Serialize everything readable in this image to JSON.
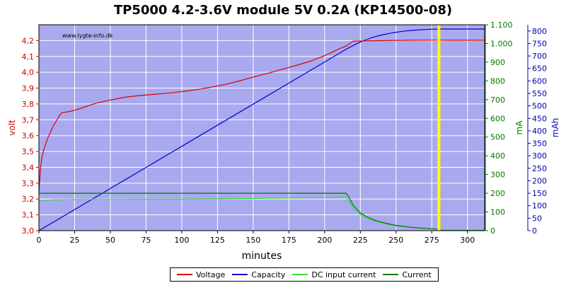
{
  "title": "TP5000 4.2-3.6V module 5V 0.2A (KP14500-08)",
  "watermark": "www.lygte-info.dk",
  "colors": {
    "plot_bg": "#a9a9ef",
    "grid": "#ffffff",
    "voltage": "#dd0000",
    "capacity": "#0000cc",
    "dc_input": "#33dd33",
    "current": "#007700",
    "marker": "#ffff00",
    "y1_axis": "#cc0000",
    "y2_axis": "#007700",
    "y3_axis": "#0000aa"
  },
  "chart_data": {
    "type": "line",
    "title": "TP5000 4.2-3.6V module 5V 0.2A (KP14500-08)",
    "xlabel": "minutes",
    "xlim": [
      0,
      312
    ],
    "xticks": [
      0,
      25,
      50,
      75,
      100,
      125,
      150,
      175,
      200,
      225,
      250,
      275,
      300
    ],
    "y_axes": [
      {
        "id": "y1",
        "label": "volt",
        "lim": [
          3.0,
          4.3
        ],
        "ticks": [
          "3,0",
          "3,1",
          "3,2",
          "3,3",
          "3,4",
          "3,5",
          "3,6",
          "3,7",
          "3,8",
          "3,9",
          "4,0",
          "4,1",
          "4,2"
        ],
        "tick_values": [
          3.0,
          3.1,
          3.2,
          3.3,
          3.4,
          3.5,
          3.6,
          3.7,
          3.8,
          3.9,
          4.0,
          4.1,
          4.2
        ]
      },
      {
        "id": "y2",
        "label": "mA",
        "lim": [
          0,
          1.1
        ],
        "ticks": [
          "0",
          "100",
          "200",
          "300",
          "400",
          "500",
          "600",
          "700",
          "800",
          "900",
          "1.000",
          "1.100"
        ],
        "tick_values": [
          0,
          0.1,
          0.2,
          0.3,
          0.4,
          0.5,
          0.6,
          0.7,
          0.8,
          0.9,
          1.0,
          1.1
        ]
      },
      {
        "id": "y3",
        "label": "mAh",
        "lim": [
          0,
          825
        ],
        "ticks": [
          "0",
          "50",
          "100",
          "150",
          "200",
          "250",
          "300",
          "350",
          "400",
          "450",
          "500",
          "550",
          "600",
          "650",
          "700",
          "750",
          "800"
        ],
        "tick_values": [
          0,
          50,
          100,
          150,
          200,
          250,
          300,
          350,
          400,
          450,
          500,
          550,
          600,
          650,
          700,
          750,
          800
        ]
      }
    ],
    "grid": true,
    "legend_position": "bottom-center",
    "marker_x": 280,
    "series": [
      {
        "name": "Voltage",
        "axis": "y1",
        "color": "#dd0000",
        "x": [
          0,
          1,
          2,
          4,
          6,
          8,
          10,
          12,
          14,
          16,
          20,
          25,
          30,
          40,
          50,
          60,
          70,
          80,
          90,
          100,
          110,
          120,
          130,
          140,
          150,
          160,
          170,
          180,
          190,
          200,
          205,
          210,
          215,
          220,
          240,
          260,
          278,
          280,
          290,
          300,
          312
        ],
        "y": [
          3.24,
          3.38,
          3.46,
          3.53,
          3.58,
          3.62,
          3.66,
          3.69,
          3.72,
          3.745,
          3.75,
          3.76,
          3.775,
          3.805,
          3.825,
          3.842,
          3.853,
          3.86,
          3.868,
          3.878,
          3.89,
          3.905,
          3.922,
          3.945,
          3.97,
          3.993,
          4.018,
          4.043,
          4.07,
          4.105,
          4.125,
          4.148,
          4.165,
          4.197,
          4.2,
          4.202,
          4.203,
          4.203,
          4.202,
          4.202,
          4.202
        ]
      },
      {
        "name": "Capacity",
        "axis": "y3",
        "color": "#0000cc",
        "x": [
          0,
          50,
          100,
          150,
          200,
          215,
          220,
          225,
          230,
          235,
          240,
          245,
          250,
          255,
          260,
          265,
          270,
          275,
          280,
          290,
          300,
          312
        ],
        "y": [
          0,
          169,
          338,
          507,
          676,
          727,
          742,
          756,
          767,
          777,
          784,
          790,
          795,
          799,
          802,
          804,
          806,
          807,
          808,
          808,
          808,
          808
        ]
      },
      {
        "name": "DC input current",
        "axis": "y2",
        "color": "#33dd33",
        "x": [
          0,
          3,
          10,
          25,
          50,
          100,
          150,
          200,
          215,
          217,
          220,
          225,
          230,
          235,
          240,
          245,
          250,
          260,
          270,
          279,
          281,
          300,
          312
        ],
        "y": [
          0.155,
          0.16,
          0.165,
          0.167,
          0.167,
          0.169,
          0.172,
          0.177,
          0.18,
          0.16,
          0.12,
          0.086,
          0.066,
          0.052,
          0.042,
          0.033,
          0.026,
          0.018,
          0.012,
          0.008,
          0.002,
          0.002,
          0.002
        ]
      },
      {
        "name": "Current",
        "axis": "y2",
        "color": "#007700",
        "x": [
          0,
          50,
          100,
          150,
          200,
          215,
          217,
          220,
          225,
          230,
          235,
          240,
          245,
          250,
          260,
          270,
          279,
          281,
          300,
          312
        ],
        "y": [
          0.2,
          0.2,
          0.2,
          0.2,
          0.2,
          0.2,
          0.18,
          0.135,
          0.095,
          0.072,
          0.056,
          0.045,
          0.036,
          0.028,
          0.018,
          0.012,
          0.008,
          0.001,
          0.001,
          0.001
        ]
      }
    ]
  },
  "legend": [
    {
      "label": "Voltage",
      "color": "#dd0000"
    },
    {
      "label": "Capacity",
      "color": "#0000cc"
    },
    {
      "label": "DC input current",
      "color": "#33dd33"
    },
    {
      "label": "Current",
      "color": "#007700"
    }
  ]
}
